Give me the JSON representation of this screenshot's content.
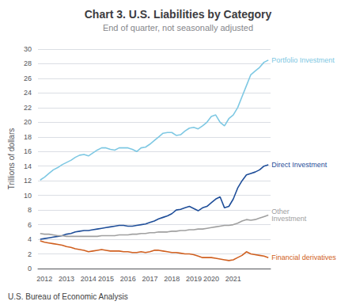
{
  "chart_data": {
    "type": "line",
    "title": "Chart 3. U.S. Liabilities by Category",
    "subtitle": "End of quarter, not seasonally adjusted",
    "ylabel": "Trillions of dollars",
    "footer": "U.S. Bureau of Economic Analysis",
    "ylim": [
      0,
      30
    ],
    "yticks": [
      0,
      2,
      4,
      6,
      8,
      10,
      12,
      14,
      16,
      18,
      20,
      22,
      24,
      26,
      28,
      30
    ],
    "grid": true,
    "categories": [
      null,
      "2012",
      null,
      null,
      null,
      null,
      "2013",
      null,
      null,
      null,
      null,
      "2014",
      null,
      null,
      null,
      "2015",
      null,
      null,
      null,
      null,
      "2016",
      null,
      null,
      null,
      null,
      "2017",
      null,
      null,
      null,
      null,
      "2018",
      null,
      null,
      null,
      null,
      "2019",
      null,
      null,
      null,
      "2020",
      null,
      null,
      null,
      null,
      "2021",
      null,
      null,
      null,
      null,
      null,
      null,
      null,
      null
    ],
    "series": [
      {
        "name": "Portfolio Investment",
        "color": "#7ec8e3",
        "values": [
          12.1,
          12.5,
          13.0,
          13.5,
          13.8,
          14.2,
          14.5,
          14.8,
          15.2,
          15.5,
          15.6,
          15.4,
          15.8,
          16.2,
          16.5,
          16.5,
          16.3,
          16.2,
          16.5,
          16.5,
          16.5,
          16.3,
          16.0,
          16.5,
          16.6,
          17.0,
          17.5,
          18.0,
          18.5,
          18.6,
          18.6,
          18.2,
          18.3,
          18.8,
          19.2,
          19.3,
          19.1,
          19.5,
          20.0,
          20.8,
          21.0,
          20.0,
          19.5,
          20.5,
          21.0,
          22.0,
          23.5,
          25.0,
          26.5,
          27.0,
          27.5,
          28.2,
          28.5
        ]
      },
      {
        "name": "Direct Investment",
        "color": "#1f4e99",
        "values": [
          4.0,
          4.1,
          4.2,
          4.3,
          4.4,
          4.5,
          4.7,
          4.8,
          5.0,
          5.1,
          5.2,
          5.2,
          5.3,
          5.4,
          5.5,
          5.6,
          5.7,
          5.8,
          5.9,
          5.9,
          5.8,
          5.8,
          5.9,
          6.0,
          6.1,
          6.3,
          6.5,
          6.8,
          7.0,
          7.2,
          7.5,
          8.0,
          8.1,
          8.3,
          8.5,
          8.2,
          7.9,
          8.3,
          8.5,
          9.0,
          9.5,
          9.8,
          8.3,
          8.5,
          9.5,
          11.0,
          12.0,
          12.8,
          13.0,
          13.2,
          13.5,
          14.0,
          14.2
        ]
      },
      {
        "name": "Other\nInvestment",
        "color": "#a0a0a0",
        "values": [
          4.8,
          4.7,
          4.7,
          4.6,
          4.5,
          4.5,
          4.4,
          4.4,
          4.4,
          4.4,
          4.4,
          4.4,
          4.4,
          4.4,
          4.5,
          4.5,
          4.5,
          4.5,
          4.6,
          4.6,
          4.6,
          4.7,
          4.7,
          4.8,
          4.8,
          4.9,
          4.9,
          5.0,
          5.0,
          5.0,
          5.1,
          5.1,
          5.2,
          5.2,
          5.3,
          5.3,
          5.4,
          5.4,
          5.5,
          5.6,
          5.7,
          5.8,
          5.9,
          5.9,
          6.0,
          6.2,
          6.5,
          6.7,
          6.6,
          6.7,
          6.9,
          7.1,
          7.3
        ]
      },
      {
        "name": "Financial derivatives",
        "color": "#d06020",
        "values": [
          3.8,
          3.6,
          3.5,
          3.4,
          3.3,
          3.2,
          3.0,
          2.9,
          2.7,
          2.6,
          2.5,
          2.3,
          2.4,
          2.5,
          2.6,
          2.5,
          2.4,
          2.4,
          2.4,
          2.3,
          2.3,
          2.2,
          2.2,
          2.3,
          2.2,
          2.3,
          2.5,
          2.5,
          2.4,
          2.3,
          2.2,
          2.2,
          2.1,
          2.0,
          2.0,
          1.9,
          1.7,
          1.5,
          1.5,
          1.5,
          1.4,
          1.3,
          1.2,
          1.1,
          1.2,
          1.5,
          1.8,
          2.3,
          2.0,
          1.9,
          1.8,
          1.7,
          1.5
        ]
      }
    ]
  }
}
